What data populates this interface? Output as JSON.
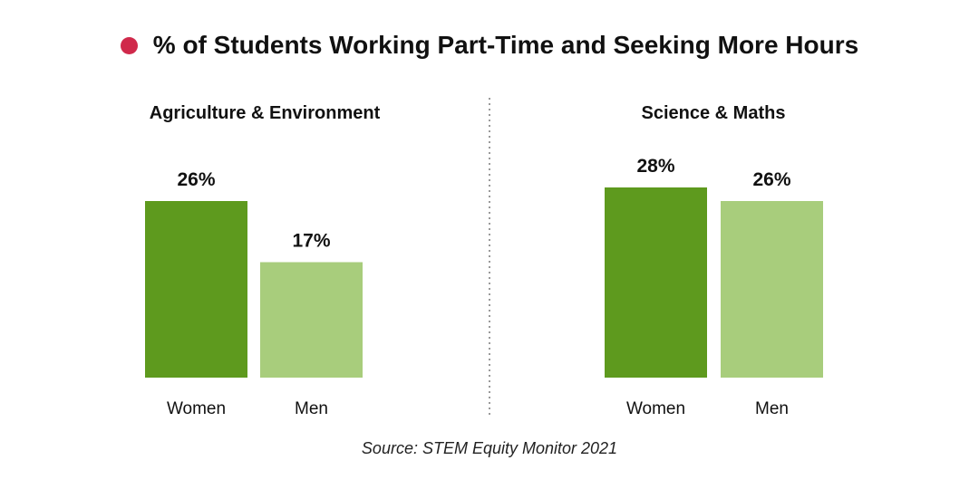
{
  "title": "% of Students Working Part-Time and Seeking More Hours",
  "source": "Source: STEM Equity Monitor 2021",
  "colors": {
    "title_dot": "#d0294b",
    "women": "#5e9a1e",
    "men": "#a8cd7c",
    "divider": "#9a9a9a"
  },
  "chart_data": [
    {
      "type": "bar",
      "title": "Agriculture & Environment",
      "categories": [
        "Women",
        "Men"
      ],
      "values": [
        26,
        17
      ],
      "labels": [
        "26%",
        "17%"
      ],
      "ylim": [
        0,
        30
      ],
      "grid": false
    },
    {
      "type": "bar",
      "title": "Science & Maths",
      "categories": [
        "Women",
        "Men"
      ],
      "values": [
        28,
        26
      ],
      "labels": [
        "28%",
        "26%"
      ],
      "ylim": [
        0,
        30
      ],
      "grid": false
    }
  ]
}
